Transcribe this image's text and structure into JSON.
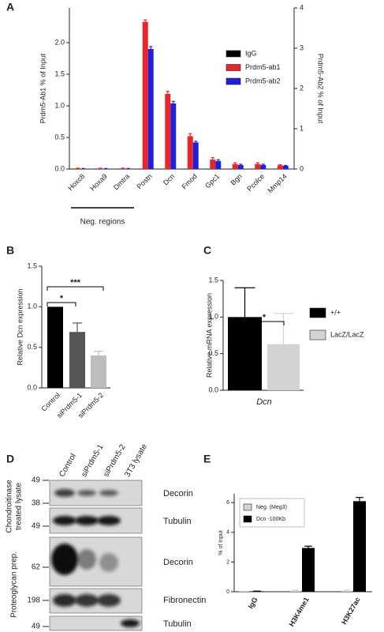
{
  "chart_data": [
    {
      "type": "bar",
      "panel_label": "A",
      "categories": [
        "Hoxc8",
        "Hoxa9",
        "Dmtra",
        "Postn",
        "Dcn",
        "Fmod",
        "Gpc1",
        "Bgn",
        "Pcolce",
        "Mmp14"
      ],
      "series": [
        {
          "name": "IgG",
          "color": "#000000",
          "values": [
            0.005,
            0.005,
            0.005,
            0.005,
            0.005,
            0.005,
            0.005,
            0.005,
            0.005,
            0.005
          ]
        },
        {
          "name": "Prdm5-ab1",
          "color": "#e8262a",
          "values": [
            0.01,
            0.01,
            0.01,
            2.33,
            1.19,
            0.52,
            0.15,
            0.08,
            0.08,
            0.06
          ],
          "errors": [
            0.005,
            0.005,
            0.005,
            0.03,
            0.04,
            0.04,
            0.03,
            0.02,
            0.02,
            0.01
          ]
        },
        {
          "name": "Prdm5-ab2",
          "color": "#2020d8",
          "axis": "y2",
          "values": [
            0.01,
            0.01,
            0.01,
            2.98,
            1.63,
            0.66,
            0.2,
            0.1,
            0.1,
            0.08
          ],
          "errors": [
            0.005,
            0.005,
            0.005,
            0.06,
            0.05,
            0.03,
            0.03,
            0.02,
            0.02,
            0.01
          ]
        }
      ],
      "ylabel": "Prdm5-Ab1 % of Input",
      "y2label": "Prdm5-Ab2 % of Input",
      "ylim": [
        0,
        2.55
      ],
      "yticks": [
        {
          "value": 0,
          "label": "0.0"
        },
        {
          "value": 0.5,
          "label": "0.5"
        },
        {
          "value": 1,
          "label": "1.0"
        },
        {
          "value": 1.5,
          "label": "1.5"
        },
        {
          "value": 2,
          "label": "2.0"
        }
      ],
      "y2lim": [
        0,
        4
      ],
      "y2ticks": [
        0,
        1,
        2,
        3,
        4
      ],
      "annotation": "Neg. regions",
      "legend": "upper right"
    },
    {
      "type": "bar",
      "panel_label": "B",
      "categories": [
        "Control",
        "siPrdm5-1",
        "siPrdm5-2"
      ],
      "values": [
        1.0,
        0.69,
        0.4
      ],
      "errors": [
        null,
        0.11,
        0.05
      ],
      "colors": [
        "#000000",
        "#555555",
        "#bdbdbd"
      ],
      "ylabel": "Relative Dcn expression",
      "ylim": [
        0,
        1.5
      ],
      "yticks": [
        {
          "value": 0,
          "label": "0.0"
        },
        {
          "value": 0.5,
          "label": "0.5"
        },
        {
          "value": 1,
          "label": "1.0"
        },
        {
          "value": 1.5,
          "label": "1.5"
        }
      ],
      "significance": [
        "*",
        "***"
      ]
    },
    {
      "type": "bar",
      "panel_label": "C",
      "categories": [
        "Dcn"
      ],
      "series": [
        {
          "name": "+/+",
          "color": "#000000",
          "values": [
            1.0
          ],
          "errors": [
            0.4
          ]
        },
        {
          "name": "LacZ/LacZ",
          "color": "#d3d3d3",
          "values": [
            0.63
          ],
          "errors": [
            0.42
          ]
        }
      ],
      "ylabel": "Relative mRNA expression",
      "ylim": [
        0,
        1.5
      ],
      "yticks": [
        {
          "value": 0,
          "label": "0.0"
        },
        {
          "value": 0.5,
          "label": "0.5"
        },
        {
          "value": 1,
          "label": "1.0"
        },
        {
          "value": 1.5,
          "label": "1.5"
        }
      ],
      "significance": [
        "*"
      ],
      "legend": "right"
    },
    {
      "type": "bar",
      "panel_label": "E",
      "categories": [
        "IgG",
        "H3K4me1",
        "H3K27ac"
      ],
      "series": [
        {
          "name": "Neg. (Meg3)",
          "color": "#d3d3d3",
          "values": [
            0.02,
            0.08,
            0.07
          ],
          "errors": [
            0.01,
            0.03,
            0.03
          ]
        },
        {
          "name": "Dcn -100Kb",
          "color": "#000000",
          "values": [
            0.03,
            2.95,
            6.1
          ],
          "errors": [
            0.01,
            0.12,
            0.25
          ]
        }
      ],
      "ylabel": "% of Input",
      "ylim": [
        0,
        6.6
      ],
      "yticks": [
        0,
        2,
        4,
        6
      ],
      "legend": "upper left"
    }
  ],
  "blot": {
    "panel_label": "D",
    "lanes": [
      "Control",
      "siPrdm5-1",
      "siPrdm5-2",
      "3T3 lysate"
    ],
    "markers": [
      49,
      38,
      49,
      62,
      198,
      49
    ],
    "bands": [
      "Decorin",
      "Tubulin",
      "Decorin",
      "Fibronectin",
      "Tubulin"
    ],
    "groups": [
      [
        "Chondroitinase",
        "treated lysate"
      ],
      [
        "Proteoglycan prep."
      ]
    ]
  }
}
